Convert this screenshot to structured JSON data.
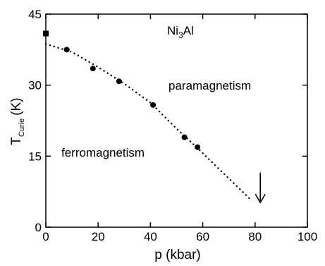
{
  "chart_data": {
    "type": "scatter",
    "xlabel": "p (kbar)",
    "ylabel_main": "T",
    "ylabel_sub": "Curie",
    "ylabel_unit": "(K)",
    "xlim": [
      0,
      100
    ],
    "ylim": [
      0,
      45
    ],
    "x_ticks": [
      0,
      20,
      40,
      60,
      80,
      100
    ],
    "y_ticks": [
      0,
      15,
      30,
      45
    ],
    "grid": false,
    "compound": {
      "base": "Ni",
      "sub": "3",
      "tail": "Al"
    },
    "region_labels": {
      "para": "paramagnetism",
      "ferro": "ferromagnetism"
    },
    "series": [
      {
        "marker": "square",
        "x": [
          0
        ],
        "y": [
          40.9
        ]
      },
      {
        "marker": "circle",
        "x": [
          8,
          18,
          28,
          41,
          53,
          58
        ],
        "y": [
          37.5,
          33.5,
          30.8,
          25.8,
          19.0,
          16.9
        ]
      }
    ],
    "fit_curve": {
      "style": "dotted",
      "x": [
        0,
        10,
        20,
        30,
        40,
        50,
        58,
        66,
        72,
        78
      ],
      "y": [
        38.7,
        37.0,
        33.8,
        30.3,
        26.3,
        20.8,
        16.7,
        12.4,
        9.2,
        6.0
      ]
    },
    "arrow": {
      "x": 82,
      "y_from": 11.5,
      "y_to": 5.2
    }
  }
}
